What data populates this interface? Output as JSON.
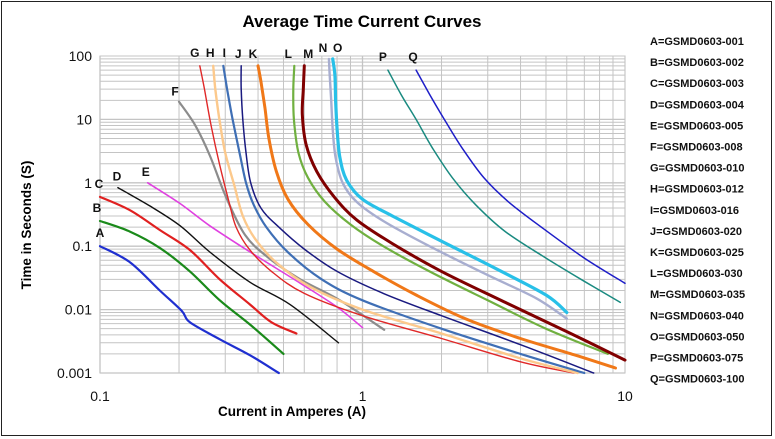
{
  "chart_data": {
    "type": "line",
    "title": "Average Time Current Curves",
    "xlabel": "Current in Amperes (A)",
    "ylabel": "Time in Seconds (S)",
    "xscale": "log",
    "yscale": "log",
    "xlim": [
      0.1,
      10
    ],
    "ylim": [
      0.001,
      100
    ],
    "x_ticks": [
      {
        "value": 0.1,
        "label": "0.1"
      },
      {
        "value": 1,
        "label": "1"
      },
      {
        "value": 10,
        "label": "10"
      }
    ],
    "y_ticks": [
      {
        "value": 100,
        "label": "100"
      },
      {
        "value": 10,
        "label": "10"
      },
      {
        "value": 1,
        "label": "1"
      },
      {
        "value": 0.1,
        "label": "0.1"
      },
      {
        "value": 0.01,
        "label": "0.01"
      },
      {
        "value": 0.001,
        "label": "0.001"
      }
    ],
    "grid": true,
    "legend_position": "right",
    "series": [
      {
        "id": "A",
        "name": "GSMD0603-001",
        "legend": "A=GSMD0603-001",
        "color": "#1f2fd0",
        "width": 2.2,
        "points": [
          [
            0.1,
            0.1
          ],
          [
            0.13,
            0.056
          ],
          [
            0.169,
            0.02
          ],
          [
            0.205,
            0.0095
          ],
          [
            0.22,
            0.0063
          ],
          [
            0.286,
            0.0034
          ],
          [
            0.373,
            0.0019
          ],
          [
            0.48,
            0.001
          ]
        ]
      },
      {
        "id": "B",
        "name": "GSMD0603-002",
        "legend": "B=GSMD0603-002",
        "color": "#1a8a1a",
        "width": 2.2,
        "points": [
          [
            0.1,
            0.25
          ],
          [
            0.13,
            0.17
          ],
          [
            0.169,
            0.094
          ],
          [
            0.22,
            0.04
          ],
          [
            0.286,
            0.014
          ],
          [
            0.373,
            0.0058
          ],
          [
            0.5,
            0.002
          ]
        ]
      },
      {
        "id": "C",
        "name": "GSMD0603-003",
        "legend": "C=GSMD0603-003",
        "color": "#e02020",
        "width": 2.2,
        "points": [
          [
            0.1,
            0.6
          ],
          [
            0.13,
            0.37
          ],
          [
            0.169,
            0.18
          ],
          [
            0.22,
            0.087
          ],
          [
            0.286,
            0.03
          ],
          [
            0.373,
            0.012
          ],
          [
            0.45,
            0.0063
          ],
          [
            0.56,
            0.0042
          ]
        ]
      },
      {
        "id": "D",
        "name": "GSMD0603-004",
        "legend": "D=GSMD0603-004",
        "color": "#111111",
        "width": 1.4,
        "points": [
          [
            0.117,
            0.84
          ],
          [
            0.155,
            0.43
          ],
          [
            0.202,
            0.21
          ],
          [
            0.262,
            0.081
          ],
          [
            0.373,
            0.027
          ],
          [
            0.53,
            0.012
          ],
          [
            0.81,
            0.003
          ]
        ]
      },
      {
        "id": "E",
        "name": "GSMD0603-005",
        "legend": "E=GSMD0603-005",
        "color": "#e040e0",
        "width": 1.6,
        "points": [
          [
            0.152,
            1.0
          ],
          [
            0.202,
            0.47
          ],
          [
            0.262,
            0.21
          ],
          [
            0.373,
            0.081
          ],
          [
            0.58,
            0.026
          ],
          [
            0.8,
            0.011
          ],
          [
            1.0,
            0.0052
          ]
        ]
      },
      {
        "id": "F",
        "name": "GSMD0603-008",
        "legend": "F=GSMD0603-008",
        "color": "#8c8c8c",
        "width": 2.2,
        "points": [
          [
            0.2,
            19
          ],
          [
            0.23,
            8.2
          ],
          [
            0.262,
            2.7
          ],
          [
            0.3,
            0.64
          ],
          [
            0.357,
            0.15
          ],
          [
            0.44,
            0.065
          ],
          [
            0.58,
            0.03
          ],
          [
            0.82,
            0.014
          ],
          [
            1.21,
            0.0048
          ]
        ]
      },
      {
        "id": "G",
        "name": "GSMD0603-010",
        "legend": "G=GSMD0603-010",
        "color": "#e02828",
        "width": 1.4,
        "points": [
          [
            0.24,
            70
          ],
          [
            0.25,
            30
          ],
          [
            0.265,
            8
          ],
          [
            0.285,
            2
          ],
          [
            0.31,
            0.5
          ],
          [
            0.33,
            0.2
          ],
          [
            0.37,
            0.09
          ],
          [
            0.45,
            0.04
          ],
          [
            0.6,
            0.018
          ],
          [
            1.0,
            0.008
          ],
          [
            2.0,
            0.0035
          ],
          [
            4.0,
            0.0015
          ],
          [
            6.4,
            0.001
          ]
        ]
      },
      {
        "id": "H",
        "name": "GSMD0603-012",
        "legend": "H=GSMD0603-012",
        "color": "#fcc98c",
        "width": 2.4,
        "points": [
          [
            0.27,
            70
          ],
          [
            0.275,
            30
          ],
          [
            0.285,
            10
          ],
          [
            0.3,
            3
          ],
          [
            0.325,
            0.9
          ],
          [
            0.35,
            0.3
          ],
          [
            0.39,
            0.13
          ],
          [
            0.47,
            0.055
          ],
          [
            0.63,
            0.023
          ],
          [
            1.0,
            0.01
          ],
          [
            2.0,
            0.0042
          ],
          [
            4.0,
            0.0017
          ],
          [
            6.6,
            0.001
          ]
        ]
      },
      {
        "id": "I",
        "name": "GSMD0603-016",
        "legend": "I=GSMD0603-016",
        "color": "#3f6fb5",
        "width": 2.2,
        "points": [
          [
            0.295,
            70
          ],
          [
            0.305,
            30
          ],
          [
            0.32,
            10
          ],
          [
            0.34,
            3
          ],
          [
            0.36,
            1
          ],
          [
            0.385,
            0.45
          ],
          [
            0.43,
            0.2
          ],
          [
            0.52,
            0.08
          ],
          [
            0.7,
            0.03
          ],
          [
            1.0,
            0.014
          ],
          [
            2.0,
            0.005
          ],
          [
            4.0,
            0.002
          ],
          [
            7.0,
            0.001
          ]
        ]
      },
      {
        "id": "J",
        "name": "GSMD0603-020",
        "legend": "J=GSMD0603-020",
        "color": "#1a1a80",
        "width": 1.5,
        "points": [
          [
            0.345,
            70
          ],
          [
            0.345,
            30
          ],
          [
            0.35,
            10
          ],
          [
            0.36,
            3
          ],
          [
            0.375,
            1
          ],
          [
            0.41,
            0.4
          ],
          [
            0.48,
            0.2
          ],
          [
            0.6,
            0.09
          ],
          [
            0.8,
            0.04
          ],
          [
            1.2,
            0.018
          ],
          [
            2.0,
            0.008
          ],
          [
            4.0,
            0.0028
          ],
          [
            7.6,
            0.001
          ]
        ]
      },
      {
        "id": "K",
        "name": "GSMD0603-025",
        "legend": "K=GSMD0603-025",
        "color": "#f07818",
        "width": 3,
        "points": [
          [
            0.4,
            70
          ],
          [
            0.41,
            40
          ],
          [
            0.425,
            15
          ],
          [
            0.44,
            5
          ],
          [
            0.47,
            1.5
          ],
          [
            0.52,
            0.55
          ],
          [
            0.62,
            0.22
          ],
          [
            0.8,
            0.09
          ],
          [
            1.1,
            0.04
          ],
          [
            1.6,
            0.017
          ],
          [
            2.5,
            0.007
          ],
          [
            4.0,
            0.0035
          ],
          [
            6.5,
            0.0019
          ],
          [
            9.2,
            0.0012
          ]
        ]
      },
      {
        "id": "L",
        "name": "GSMD0603-030",
        "legend": "L=GSMD0603-030",
        "color": "#70b040",
        "width": 2.2,
        "points": [
          [
            0.55,
            70
          ],
          [
            0.545,
            30
          ],
          [
            0.548,
            10
          ],
          [
            0.57,
            3
          ],
          [
            0.62,
            1.2
          ],
          [
            0.72,
            0.5
          ],
          [
            0.9,
            0.22
          ],
          [
            1.2,
            0.1
          ],
          [
            1.8,
            0.04
          ],
          [
            3.0,
            0.014
          ],
          [
            5.0,
            0.005
          ],
          [
            8.6,
            0.002
          ]
        ]
      },
      {
        "id": "M",
        "name": "GSMD0603-035",
        "legend": "M=GSMD0603-035",
        "color": "#800000",
        "width": 3,
        "points": [
          [
            0.6,
            70
          ],
          [
            0.595,
            30
          ],
          [
            0.59,
            12
          ],
          [
            0.61,
            4
          ],
          [
            0.67,
            1.5
          ],
          [
            0.78,
            0.6
          ],
          [
            0.95,
            0.26
          ],
          [
            1.3,
            0.11
          ],
          [
            2.0,
            0.04
          ],
          [
            3.5,
            0.013
          ],
          [
            6.0,
            0.0045
          ],
          [
            10.0,
            0.0016
          ]
        ]
      },
      {
        "id": "N",
        "name": "GSMD0603-040",
        "legend": "N=GSMD0603-040",
        "color": "#a8aed0",
        "width": 2.4,
        "points": [
          [
            0.745,
            90
          ],
          [
            0.75,
            50
          ],
          [
            0.76,
            20
          ],
          [
            0.77,
            7
          ],
          [
            0.79,
            2.5
          ],
          [
            0.84,
            1
          ],
          [
            0.95,
            0.5
          ],
          [
            1.2,
            0.25
          ],
          [
            1.8,
            0.1
          ],
          [
            3.0,
            0.035
          ],
          [
            4.6,
            0.015
          ],
          [
            6.0,
            0.0072
          ]
        ]
      },
      {
        "id": "O",
        "name": "GSMD0603-050",
        "legend": "O=GSMD0603-050",
        "color": "#28c0e8",
        "width": 3.2,
        "points": [
          [
            0.77,
            90
          ],
          [
            0.785,
            50
          ],
          [
            0.79,
            20
          ],
          [
            0.8,
            7
          ],
          [
            0.82,
            2.5
          ],
          [
            0.87,
            1.1
          ],
          [
            1.0,
            0.55
          ],
          [
            1.3,
            0.3
          ],
          [
            2.0,
            0.12
          ],
          [
            3.2,
            0.045
          ],
          [
            5.0,
            0.017
          ],
          [
            6.0,
            0.009
          ]
        ]
      },
      {
        "id": "P",
        "name": "GSMD0603-075",
        "legend": "P=GSMD0603-075",
        "color": "#1a8a80",
        "width": 1.5,
        "points": [
          [
            1.25,
            60
          ],
          [
            1.4,
            25
          ],
          [
            1.6,
            10
          ],
          [
            1.85,
            3.5
          ],
          [
            2.2,
            1.2
          ],
          [
            2.7,
            0.45
          ],
          [
            3.5,
            0.17
          ],
          [
            5.0,
            0.065
          ],
          [
            7.0,
            0.028
          ],
          [
            9.6,
            0.013
          ]
        ]
      },
      {
        "id": "Q",
        "name": "GSMD0603-100",
        "legend": "Q=GSMD0603-100",
        "color": "#1e1ec8",
        "width": 1.5,
        "points": [
          [
            1.6,
            60
          ],
          [
            1.8,
            25
          ],
          [
            2.05,
            10
          ],
          [
            2.4,
            3.5
          ],
          [
            2.9,
            1.2
          ],
          [
            3.6,
            0.5
          ],
          [
            4.8,
            0.2
          ],
          [
            7.0,
            0.065
          ],
          [
            10.0,
            0.026
          ]
        ]
      }
    ]
  }
}
